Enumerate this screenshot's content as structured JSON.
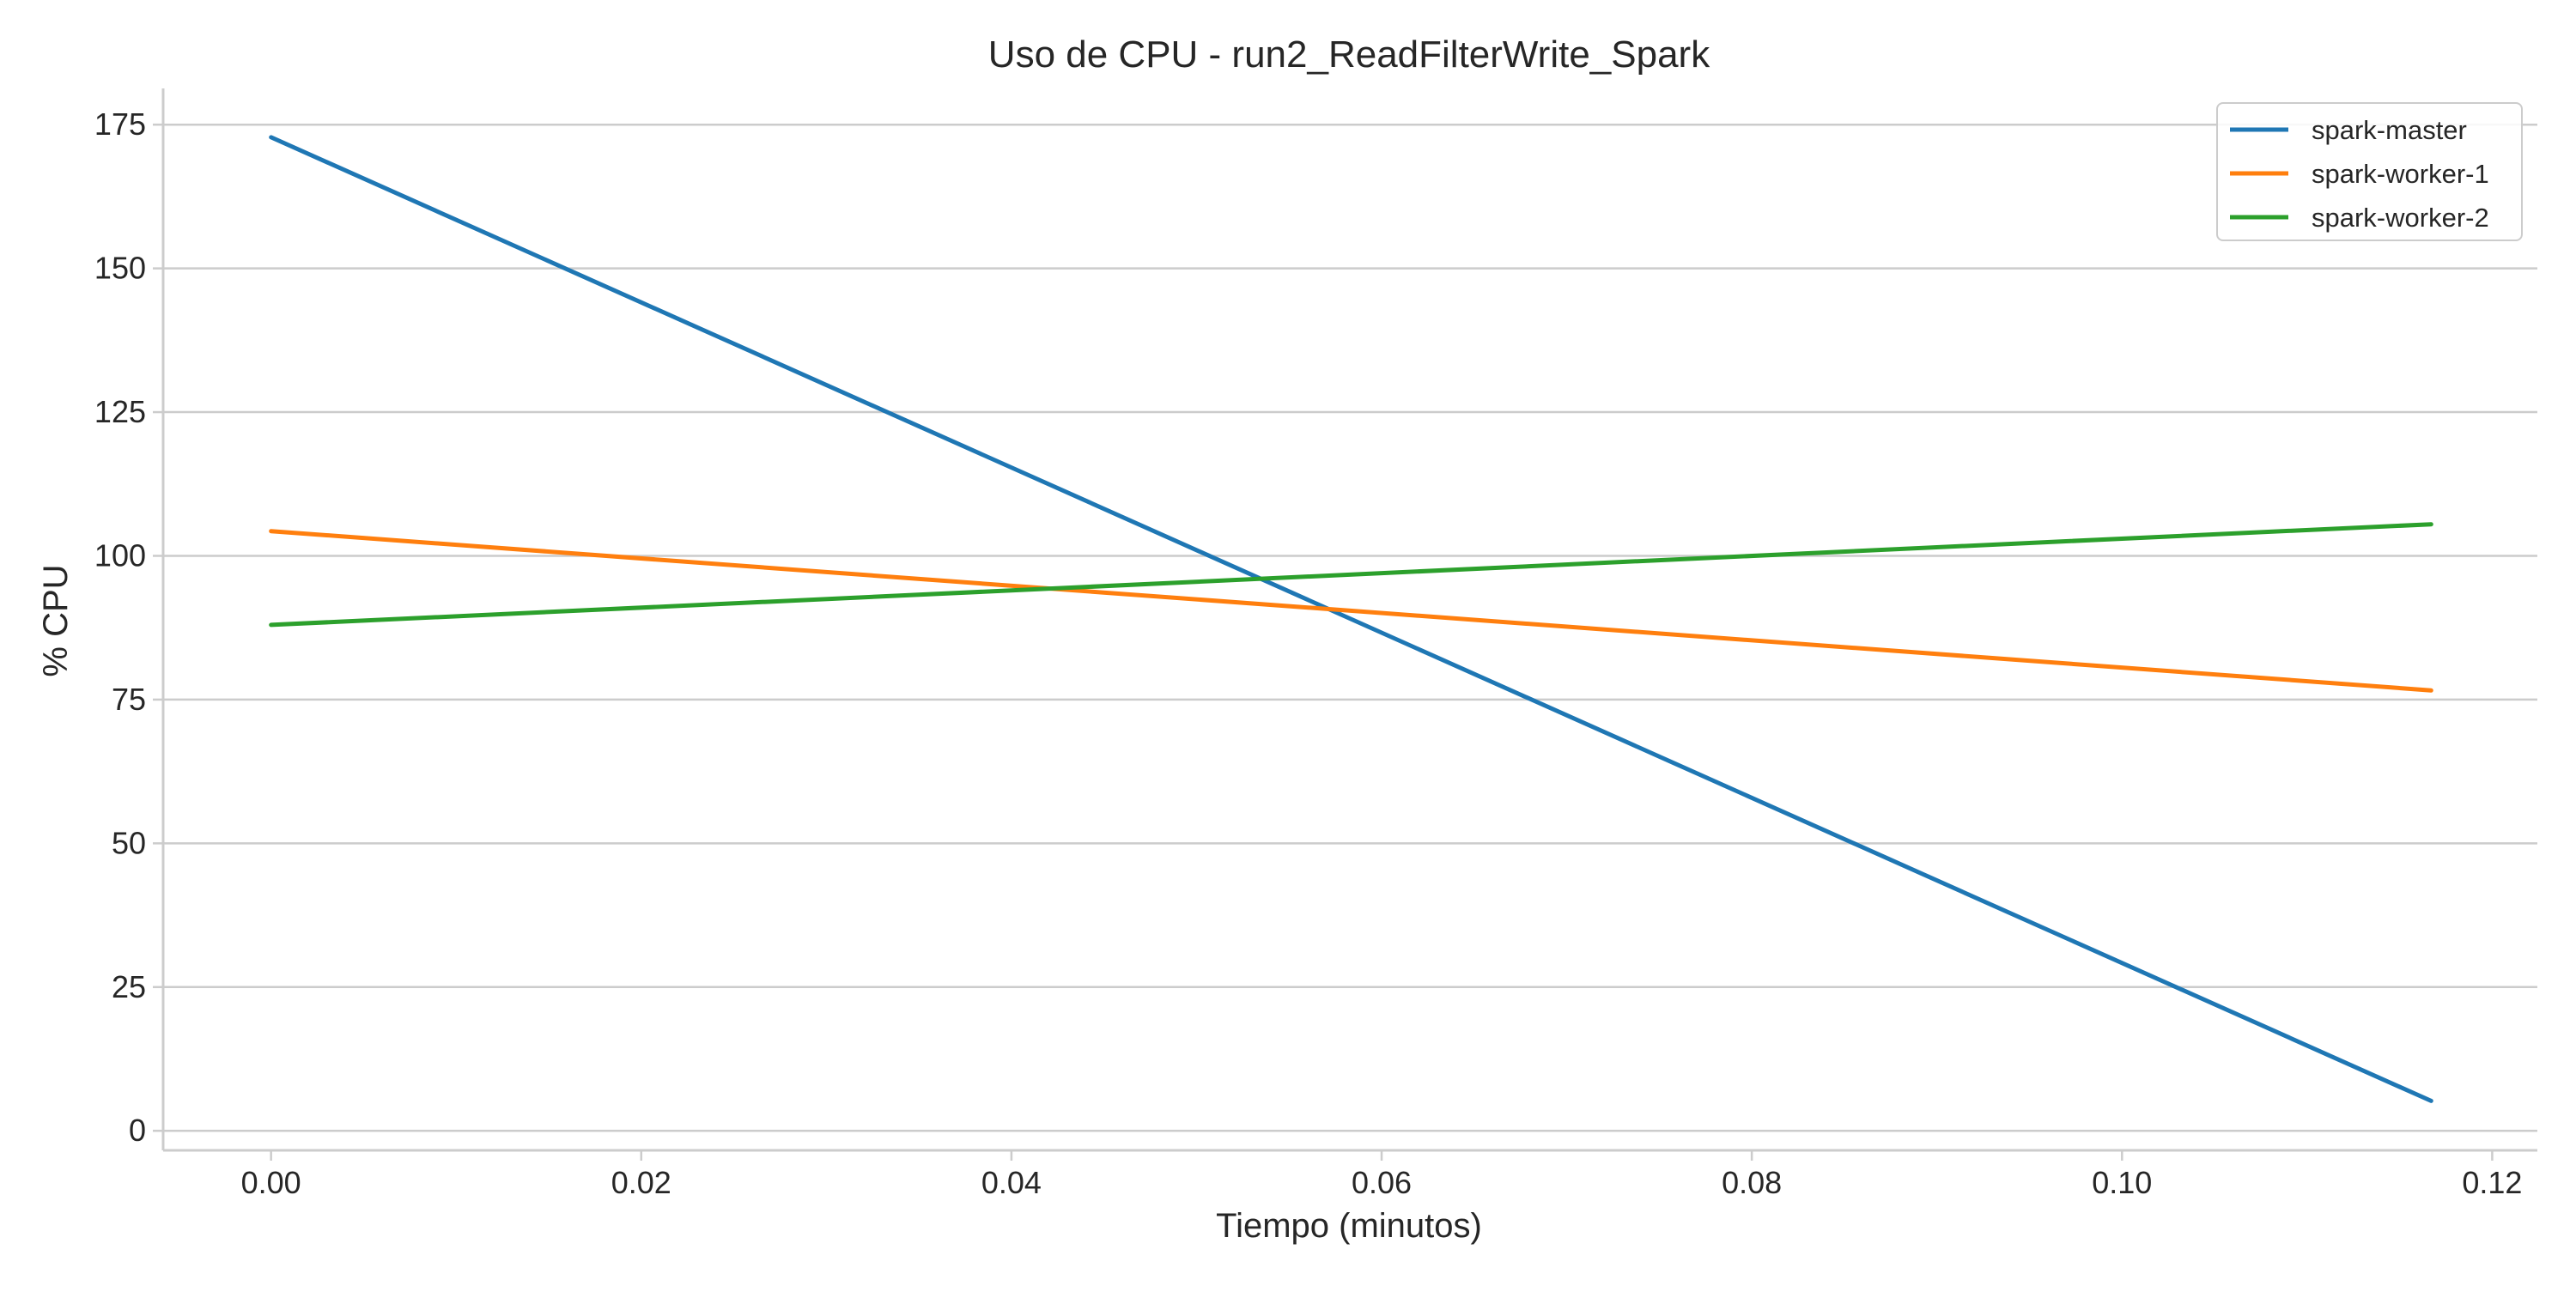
{
  "chart_data": {
    "type": "line",
    "title": "Uso de CPU - run2_ReadFilterWrite_Spark",
    "xlabel": "Tiempo (minutos)",
    "ylabel": "% CPU",
    "xlim": [
      -0.00583,
      0.12244
    ],
    "ylim": [
      -3.4,
      181.3
    ],
    "x_ticks": [
      0.0,
      0.02,
      0.04,
      0.06,
      0.08,
      0.1,
      0.12
    ],
    "x_tick_labels": [
      "0.00",
      "0.02",
      "0.04",
      "0.06",
      "0.08",
      "0.10",
      "0.12"
    ],
    "y_ticks": [
      0,
      25,
      50,
      75,
      100,
      125,
      150,
      175
    ],
    "y_tick_labels": [
      "0",
      "25",
      "50",
      "75",
      "100",
      "125",
      "150",
      "175"
    ],
    "grid": "horizontal",
    "legend_position": "top-right",
    "series": [
      {
        "name": "spark-master",
        "color": "#1f77b4",
        "x": [
          0.0,
          0.1167
        ],
        "y": [
          172.8,
          5.2
        ]
      },
      {
        "name": "spark-worker-1",
        "color": "#ff7f0e",
        "x": [
          0.0,
          0.1167
        ],
        "y": [
          104.3,
          76.6
        ]
      },
      {
        "name": "spark-worker-2",
        "color": "#2ca02c",
        "x": [
          0.0,
          0.1167
        ],
        "y": [
          88.0,
          105.5
        ]
      }
    ]
  }
}
